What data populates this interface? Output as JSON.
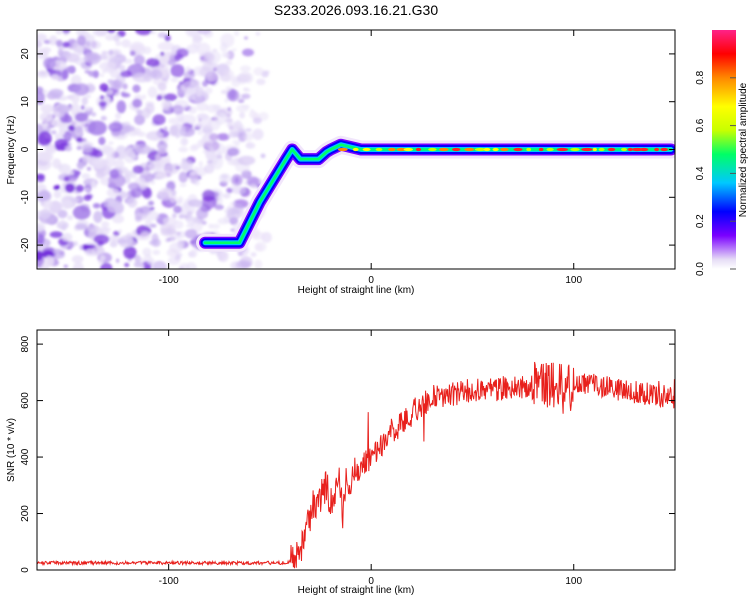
{
  "title": "S233.2026.093.16.21.G30",
  "chart_data": [
    {
      "type": "heatmap",
      "name": "spectrogram",
      "xlabel": "Height of straight line (km)",
      "ylabel": "Frequency (Hz)",
      "xlim": [
        -165,
        150
      ],
      "ylim": [
        -25,
        25
      ],
      "xticks": [
        -100,
        0,
        100
      ],
      "yticks": [
        -20,
        -10,
        0,
        10,
        20
      ],
      "colorbar": {
        "label": "Normalized spectral amplitude",
        "ticks": [
          0.0,
          0.2,
          0.4,
          0.6,
          0.8
        ],
        "range": [
          0,
          1
        ],
        "colors": [
          "#e6dcf6",
          "#7a00ff",
          "#0000ff",
          "#00c8ff",
          "#00ff66",
          "#c8ff00",
          "#ffff00",
          "#ff8800",
          "#ff0000",
          "#ff2288"
        ]
      },
      "track": {
        "x": [
          -82,
          -65,
          -55,
          -42,
          -39,
          -35,
          -26,
          -22,
          -20,
          -15,
          -5,
          20,
          60,
          100,
          148
        ],
        "y": [
          -19.5,
          -19.5,
          -11,
          -2,
          0,
          -2,
          -2,
          -0.5,
          0,
          1,
          0,
          0,
          0,
          0,
          0
        ]
      },
      "noise_region_x": [
        -165,
        -50
      ]
    },
    {
      "type": "line",
      "name": "snr",
      "xlabel": "Height of straight line (km)",
      "ylabel": "SNR (10 * v/v)",
      "xlim": [
        -165,
        150
      ],
      "ylim": [
        0,
        850
      ],
      "xticks": [
        -100,
        0,
        100
      ],
      "yticks": [
        0,
        200,
        400,
        600,
        800
      ],
      "series": [
        {
          "name": "SNR",
          "color": "#e8201c",
          "x": [
            -165,
            -140,
            -110,
            -80,
            -60,
            -45,
            -38,
            -35,
            -32,
            -30,
            -28,
            -26,
            -24,
            -22,
            -20,
            -18,
            -16,
            -14,
            -12,
            -10,
            -8,
            -5,
            0,
            5,
            10,
            15,
            20,
            25,
            30,
            40,
            50,
            60,
            70,
            80,
            90,
            95,
            100,
            110,
            120,
            130,
            140,
            150
          ],
          "values": [
            25,
            25,
            25,
            25,
            25,
            25,
            30,
            60,
            130,
            200,
            240,
            230,
            280,
            300,
            230,
            260,
            320,
            200,
            340,
            300,
            360,
            380,
            400,
            440,
            480,
            520,
            560,
            580,
            610,
            620,
            635,
            640,
            650,
            650,
            660,
            640,
            650,
            660,
            640,
            630,
            620,
            610
          ]
        }
      ]
    }
  ]
}
